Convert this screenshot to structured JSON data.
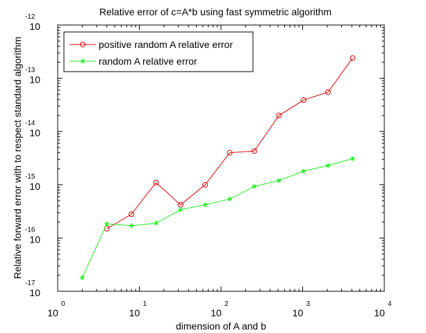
{
  "chart_data": {
    "type": "line",
    "title": "Relative error of c=A*b using fast symmetric algorithm",
    "xlabel": "dimension of A and b",
    "ylabel": "Relative forward error with to respect standard algorithm",
    "x_scale": "log",
    "y_scale": "log",
    "xlim": [
      1,
      10000
    ],
    "ylim": [
      1e-17,
      1e-12
    ],
    "x_ticks": [
      {
        "base": "10",
        "exp": "0",
        "value": 1
      },
      {
        "base": "10",
        "exp": "1",
        "value": 10
      },
      {
        "base": "10",
        "exp": "2",
        "value": 100
      },
      {
        "base": "10",
        "exp": "3",
        "value": 1000
      },
      {
        "base": "10",
        "exp": "4",
        "value": 10000
      }
    ],
    "y_ticks": [
      {
        "base": "10",
        "exp": "-17",
        "value": 1e-17
      },
      {
        "base": "10",
        "exp": "-16",
        "value": 1e-16
      },
      {
        "base": "10",
        "exp": "-15",
        "value": 1e-15
      },
      {
        "base": "10",
        "exp": "-14",
        "value": 1e-14
      },
      {
        "base": "10",
        "exp": "-13",
        "value": 1e-13
      },
      {
        "base": "10",
        "exp": "-12",
        "value": 1e-12
      }
    ],
    "grid": false,
    "legend_position": "top-left",
    "series": [
      {
        "name": "positive random A relative error",
        "color": "#dd0000",
        "marker": "circle",
        "points": [
          {
            "x": 4,
            "y": 1.5e-16
          },
          {
            "x": 8,
            "y": 2.8e-16
          },
          {
            "x": 16,
            "y": 1.1e-15
          },
          {
            "x": 32,
            "y": 4.2e-16
          },
          {
            "x": 64,
            "y": 1e-15
          },
          {
            "x": 128,
            "y": 4e-15
          },
          {
            "x": 256,
            "y": 4.3e-15
          },
          {
            "x": 512,
            "y": 2e-14
          },
          {
            "x": 1024,
            "y": 3.9e-14
          },
          {
            "x": 2048,
            "y": 5.5e-14
          },
          {
            "x": 4096,
            "y": 2.4e-13
          }
        ]
      },
      {
        "name": "random A relative error",
        "color": "#22ee22",
        "marker": "star",
        "points": [
          {
            "x": 2,
            "y": 1.8e-17
          },
          {
            "x": 4,
            "y": 1.85e-16
          },
          {
            "x": 8,
            "y": 1.7e-16
          },
          {
            "x": 16,
            "y": 1.9e-16
          },
          {
            "x": 32,
            "y": 3.4e-16
          },
          {
            "x": 64,
            "y": 4.2e-16
          },
          {
            "x": 128,
            "y": 5.4e-16
          },
          {
            "x": 256,
            "y": 9.3e-16
          },
          {
            "x": 512,
            "y": 1.2e-15
          },
          {
            "x": 1024,
            "y": 1.8e-15
          },
          {
            "x": 2048,
            "y": 2.3e-15
          },
          {
            "x": 4096,
            "y": 3.1e-15
          }
        ]
      }
    ]
  }
}
